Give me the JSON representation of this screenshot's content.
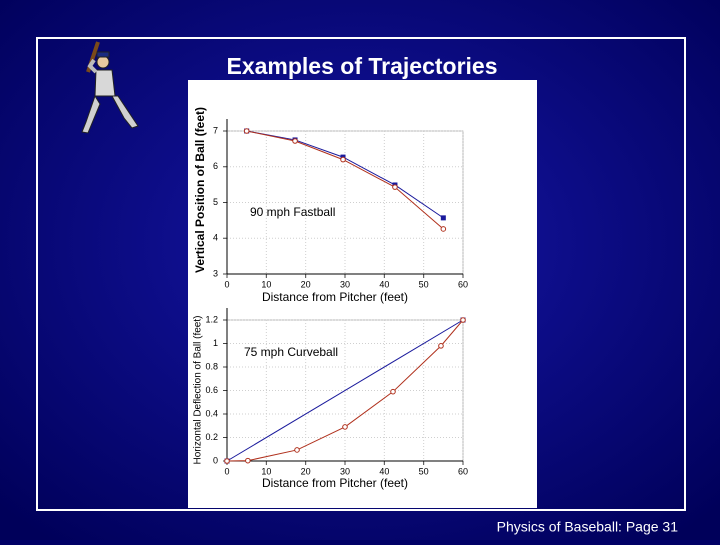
{
  "slide": {
    "title": "Examples of Trajectories",
    "footer": "Physics of Baseball:  Page 31"
  },
  "chart_data": [
    {
      "type": "line",
      "xlabel": "Distance from Pitcher (feet)",
      "ylabel": "Vertical Position of Ball (feet)",
      "annotations": [
        "90 mph Fastball"
      ],
      "xlim": [
        0,
        60
      ],
      "xticks": [
        0,
        10,
        20,
        30,
        40,
        50,
        60
      ],
      "ylim": [
        3,
        7
      ],
      "yticks": [
        3,
        4,
        5,
        6,
        7
      ],
      "grid": true,
      "series": [
        {
          "color": "#1a1a9c",
          "marker": "square",
          "x": [
            5,
            17.3,
            29.5,
            42.7,
            55
          ],
          "values": [
            7.0,
            6.75,
            6.27,
            5.49,
            4.57
          ]
        },
        {
          "color": "#b0301c",
          "marker": "circle",
          "x": [
            5,
            17.3,
            29.5,
            42.7,
            55
          ],
          "values": [
            7.0,
            6.72,
            6.2,
            5.43,
            4.26
          ]
        }
      ]
    },
    {
      "type": "line",
      "xlabel": "Distance from Pitcher (feet)",
      "ylabel": "Horizontal Deflection of Ball (feet)",
      "annotations": [
        "75 mph Curveball"
      ],
      "xlim": [
        0,
        60
      ],
      "xticks": [
        0,
        10,
        20,
        30,
        40,
        50,
        60
      ],
      "ylim": [
        0,
        1.2
      ],
      "yticks": [
        0,
        0.2,
        0.4,
        0.6,
        0.8,
        1,
        1.2
      ],
      "grid": true,
      "series": [
        {
          "color": "#1a1a9c",
          "marker": "square",
          "x": [
            0,
            60
          ],
          "values": [
            0,
            1.2
          ]
        },
        {
          "color": "#b0301c",
          "marker": "circle",
          "x": [
            0,
            5.3,
            17.8,
            30,
            42.2,
            54.4,
            60
          ],
          "values": [
            0,
            0.003,
            0.094,
            0.29,
            0.59,
            0.98,
            1.2
          ]
        }
      ]
    }
  ]
}
